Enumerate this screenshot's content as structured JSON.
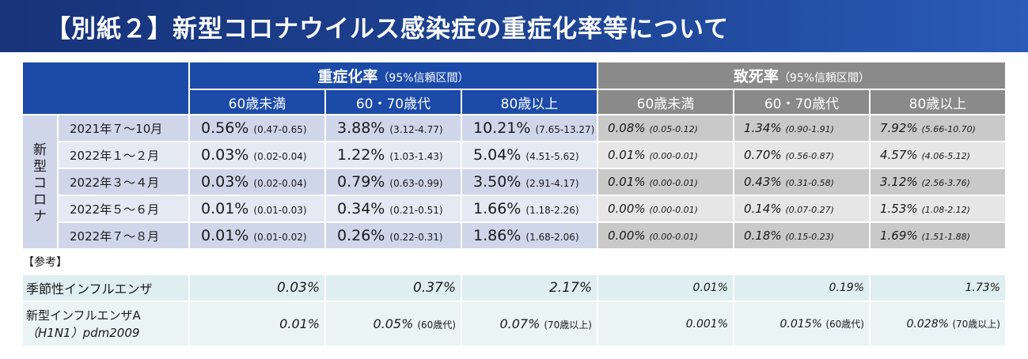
{
  "title": "【別紙２】新型コロナウイルス感染症の重症化率等について",
  "table": {
    "severity_header": "重症化率",
    "severity_sub": "（95%信頼区間）",
    "fatality_header": "致死率",
    "fatality_sub": "（95%信頼区間）",
    "age_groups": [
      "60歳未満",
      "60・70歳代",
      "80歳以上"
    ],
    "covid_label": "新型コロナ",
    "rows": [
      {
        "period": "2021年７～10月",
        "severity": [
          {
            "rate": "0.56%",
            "ci": "(0.47-0.65)"
          },
          {
            "rate": "3.88%",
            "ci": "(3.12-4.77)"
          },
          {
            "rate": "10.21%",
            "ci": "(7.65-13.27)"
          }
        ],
        "fatality": [
          {
            "rate": "0.08%",
            "ci": "(0.05-0.12)"
          },
          {
            "rate": "1.34%",
            "ci": "(0.90-1.91)"
          },
          {
            "rate": "7.92%",
            "ci": "(5.66-10.70)"
          }
        ]
      },
      {
        "period": "2022年１～２月",
        "severity": [
          {
            "rate": "0.03%",
            "ci": "(0.02-0.04)"
          },
          {
            "rate": "1.22%",
            "ci": "(1.03-1.43)"
          },
          {
            "rate": "5.04%",
            "ci": "(4.51-5.62)"
          }
        ],
        "fatality": [
          {
            "rate": "0.01%",
            "ci": "(0.00-0.01)"
          },
          {
            "rate": "0.70%",
            "ci": "(0.56-0.87)"
          },
          {
            "rate": "4.57%",
            "ci": "(4.06-5.12)"
          }
        ]
      },
      {
        "period": "2022年３～４月",
        "severity": [
          {
            "rate": "0.03%",
            "ci": "(0.02-0.04)"
          },
          {
            "rate": "0.79%",
            "ci": "(0.63-0.99)"
          },
          {
            "rate": "3.50%",
            "ci": "(2.91-4.17)"
          }
        ],
        "fatality": [
          {
            "rate": "0.01%",
            "ci": "(0.00-0.01)"
          },
          {
            "rate": "0.43%",
            "ci": "(0.31-0.58)"
          },
          {
            "rate": "3.12%",
            "ci": "(2.56-3.76)"
          }
        ]
      },
      {
        "period": "2022年５～６月",
        "severity": [
          {
            "rate": "0.01%",
            "ci": "(0.01-0.03)"
          },
          {
            "rate": "0.34%",
            "ci": "(0.21-0.51)"
          },
          {
            "rate": "1.66%",
            "ci": "(1.18-2.26)"
          }
        ],
        "fatality": [
          {
            "rate": "0.00%",
            "ci": "(0.00-0.01)"
          },
          {
            "rate": "0.14%",
            "ci": "(0.07-0.27)"
          },
          {
            "rate": "1.53%",
            "ci": "(1.08-2.12)"
          }
        ]
      },
      {
        "period": "2022年７～８月",
        "severity": [
          {
            "rate": "0.01%",
            "ci": "(0.01-0.02)"
          },
          {
            "rate": "0.26%",
            "ci": "(0.22-0.31)"
          },
          {
            "rate": "1.86%",
            "ci": "(1.68-2.06)"
          }
        ],
        "fatality": [
          {
            "rate": "0.00%",
            "ci": "(0.00-0.01)"
          },
          {
            "rate": "0.18%",
            "ci": "(0.15-0.23)"
          },
          {
            "rate": "1.69%",
            "ci": "(1.51-1.88)"
          }
        ]
      }
    ],
    "reference_label": "【参考】",
    "seasonal_flu": {
      "label": "季節性インフルエンザ",
      "severity": [
        "0.03%",
        "0.37%",
        "2.17%"
      ],
      "fatality": [
        "0.01%",
        "0.19%",
        "1.73%"
      ]
    },
    "pandemic_flu": {
      "label_line1": "新型インフルエンザA",
      "label_line2": "（H1N1）pdm2009",
      "severity": [
        {
          "rate": "0.01%",
          "note": ""
        },
        {
          "rate": "0.05%",
          "note": "(60歳代)"
        },
        {
          "rate": "0.07%",
          "note": "(70歳以上)"
        }
      ],
      "fatality": [
        {
          "rate": "0.001%",
          "note": ""
        },
        {
          "rate": "0.015%",
          "note": "(60歳代)"
        },
        {
          "rate": "0.028%",
          "note": "(70歳以上)"
        }
      ]
    }
  }
}
